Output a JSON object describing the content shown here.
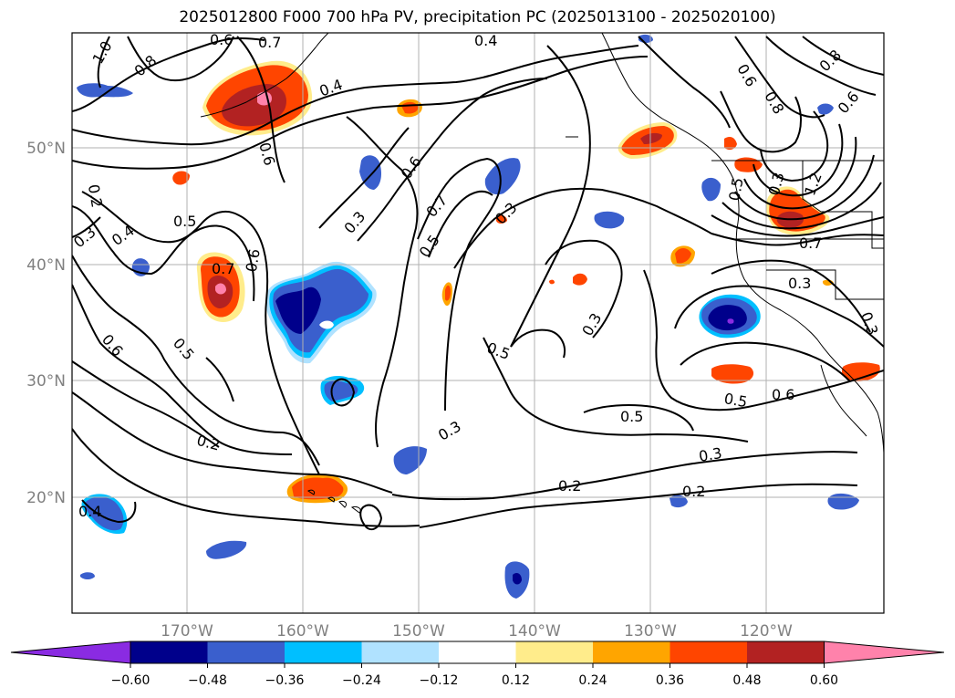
{
  "title": "2025012800 F000 700 hPa PV, precipitation PC (2025013100 - 2025020100)",
  "lat_labels": [
    "50°N",
    "40°N",
    "30°N",
    "20°N"
  ],
  "lon_labels": [
    "170°W",
    "160°W",
    "150°W",
    "140°W",
    "130°W",
    "120°W"
  ],
  "contour_labels": [
    "0.6",
    "0.7",
    "0.4",
    "1.0",
    "0.8",
    "0.4",
    "0.6",
    "0.2",
    "0.3",
    "0.4",
    "0.5",
    "0.7",
    "0.6",
    "0.6",
    "0.3",
    "0.7",
    "0.5",
    "0.3",
    "0.6",
    "0.5",
    "0.3",
    "0.5",
    "0.5",
    "0.2",
    "0.3",
    "0.2",
    "0.3",
    "0.4",
    "0.2",
    "0.5",
    "0.6",
    "0.3",
    "0.3",
    "0.7",
    "0.6",
    "0.8",
    "0.8",
    "0.6",
    "1.2",
    "0.5",
    "0.3"
  ],
  "colorbar": {
    "ticks": [
      "−0.60",
      "−0.48",
      "−0.36",
      "−0.24",
      "−0.12",
      "0.12",
      "0.24",
      "0.36",
      "0.48",
      "0.60"
    ],
    "colors": [
      "#8a2be2",
      "#00008b",
      "#3a5fcd",
      "#00bfff",
      "#b0e2ff",
      "#ffffff",
      "#ffec8b",
      "#ffa500",
      "#ff4500",
      "#b22222",
      "#ff82ab",
      "#ff82ab"
    ]
  },
  "colors": {
    "neg_light": "#b0e2ff",
    "neg_mid": "#00bfff",
    "neg_blue": "#3a5fcd",
    "neg_dark": "#00008b",
    "neg_violet": "#8a2be2",
    "pos_yellow": "#ffec8b",
    "pos_orange": "#ffa500",
    "pos_red": "#ff4500",
    "pos_dark": "#b22222",
    "pos_pink": "#ff82ab"
  }
}
